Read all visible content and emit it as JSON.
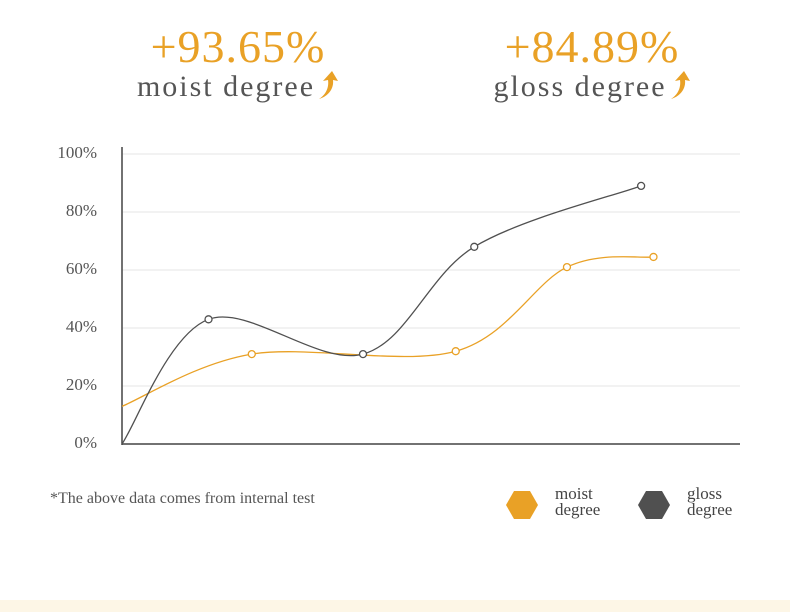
{
  "chart_data": {
    "type": "line",
    "stats": [
      {
        "value": "+93.65%",
        "label": "moist degree"
      },
      {
        "value": "+84.89%",
        "label": "gloss degree"
      }
    ],
    "xlim": [
      0,
      100
    ],
    "ylim": [
      0,
      100
    ],
    "yticks": [
      {
        "value": 0,
        "label": "0%"
      },
      {
        "value": 20,
        "label": "20%"
      },
      {
        "value": 40,
        "label": "40%"
      },
      {
        "value": 60,
        "label": "60%"
      },
      {
        "value": 80,
        "label": "80%"
      },
      {
        "value": 100,
        "label": "100%"
      }
    ],
    "grid": true,
    "series": [
      {
        "name": "moist degree",
        "color": "#e9a126",
        "x": [
          0,
          21,
          54,
          72,
          86
        ],
        "values": [
          13,
          31,
          32,
          61,
          64.5
        ]
      },
      {
        "name": "gloss degree",
        "color": "#505050",
        "x": [
          0,
          14,
          39,
          57,
          84
        ],
        "values": [
          0,
          43,
          31,
          68,
          89
        ]
      }
    ],
    "footnote": "*The above data comes from internal test"
  }
}
